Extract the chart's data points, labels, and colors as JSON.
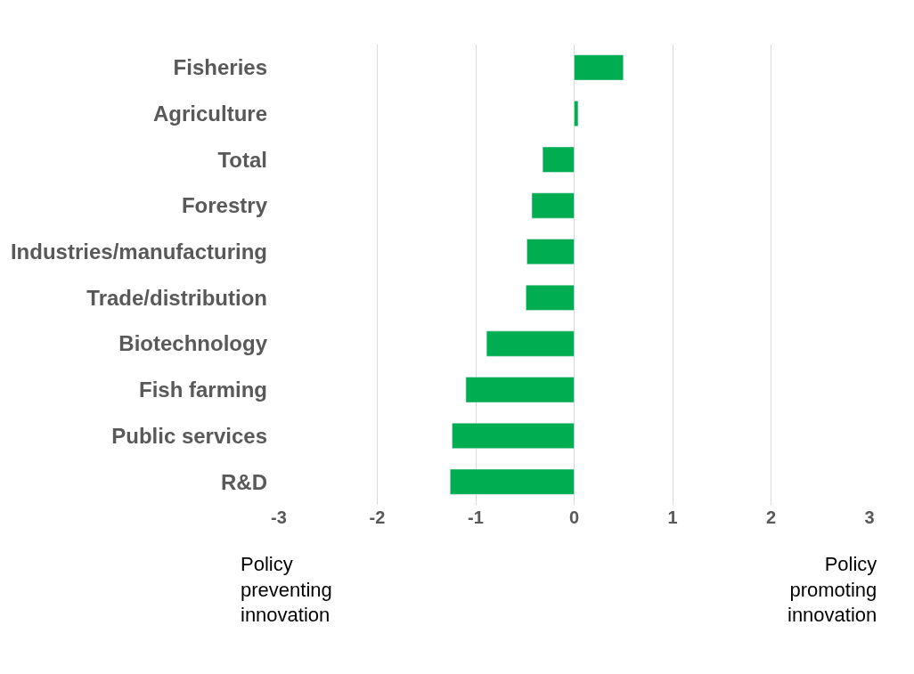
{
  "chart_data": {
    "type": "bar",
    "orientation": "horizontal",
    "categories": [
      "Fisheries",
      "Agriculture",
      "Total",
      "Forestry",
      "Industries/manufacturing",
      "Trade/distribution",
      "Biotechnology",
      "Fish farming",
      "Public services",
      "R&D"
    ],
    "values": [
      0.5,
      0.04,
      -0.32,
      -0.43,
      -0.48,
      -0.49,
      -0.89,
      -1.1,
      -1.24,
      -1.26
    ],
    "color": "#00ad50",
    "xlim": [
      -3,
      3
    ],
    "xticks": [
      -3,
      -2,
      -1,
      0,
      1,
      2,
      3
    ],
    "grid": "x",
    "annotations": [
      "Policy preventing innovation",
      "Policy promoting innovation"
    ]
  }
}
